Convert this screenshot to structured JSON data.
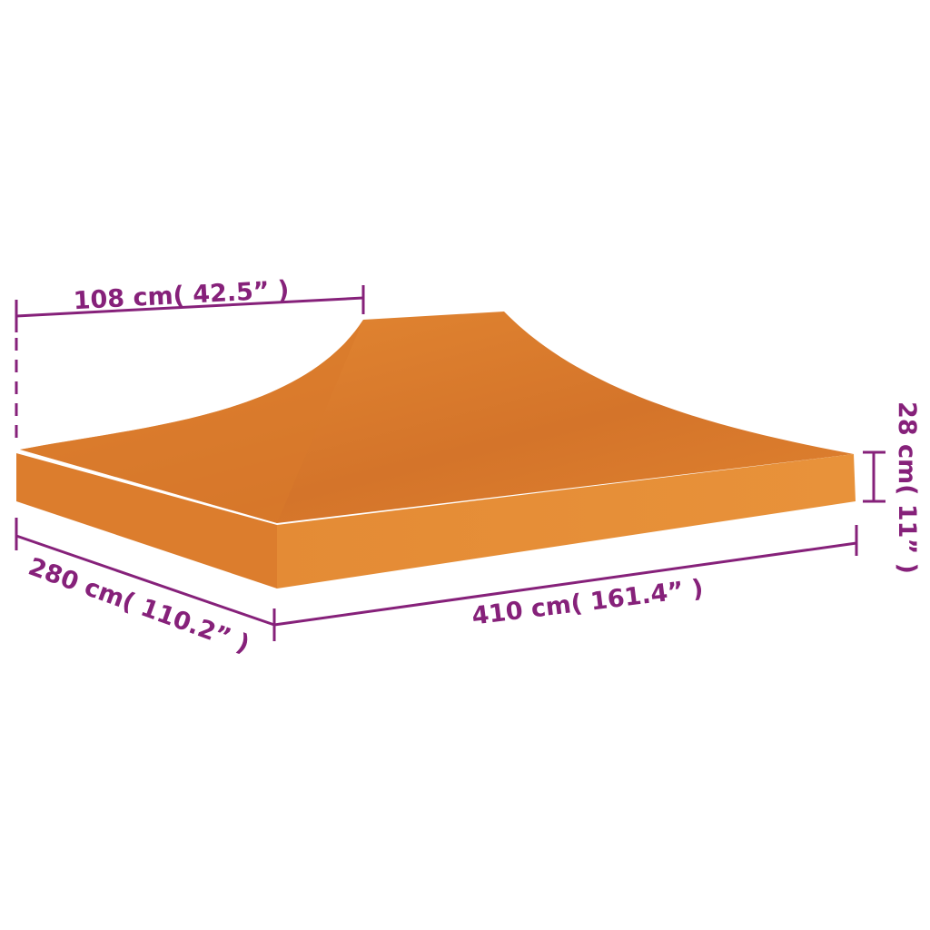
{
  "product": {
    "color": "#e0822e",
    "name": "canopy-top"
  },
  "dimensions": {
    "top_width": "108 cm( 42.5” )",
    "depth": "280 cm( 110.2” )",
    "length": "410 cm( 161.4” )",
    "edge_height": "28 cm( 11” )"
  },
  "colors": {
    "dimension": "#86217a",
    "fabric": "#e0822e"
  }
}
